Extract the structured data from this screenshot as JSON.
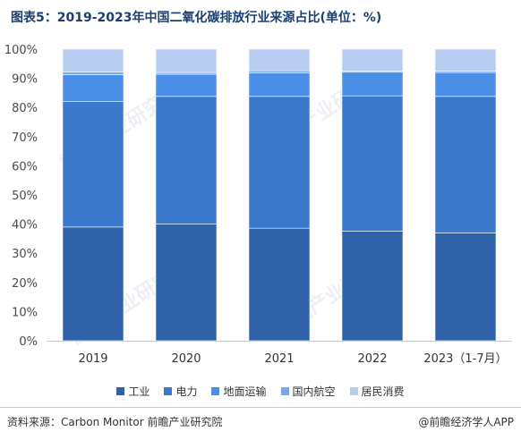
{
  "title": "图表5：2019-2023年中国二氧化碳排放行业来源占比(单位：%)",
  "source": "资料来源：Carbon Monitor 前瞻产业研究院",
  "brand": "@前瞻经济学人APP",
  "watermark": "前瞻产业研究院",
  "colors": [
    "#2e62a9",
    "#3a78cc",
    "#4a8ee6",
    "#7aa8ec",
    "#b9cdf2"
  ],
  "chart_data": {
    "type": "bar",
    "stacked": true,
    "categories": [
      "2019",
      "2020",
      "2021",
      "2022",
      "2023（1-7月）"
    ],
    "series": [
      {
        "name": "工业",
        "values": [
          39,
          40,
          38.6,
          37.6,
          37
        ]
      },
      {
        "name": "电力",
        "values": [
          43,
          43.8,
          45.2,
          46.4,
          46.8
        ]
      },
      {
        "name": "地面运输",
        "values": [
          9.3,
          7.6,
          8.1,
          8.1,
          8.2
        ]
      },
      {
        "name": "国内航空",
        "values": [
          0.9,
          0.6,
          0.7,
          0.4,
          0.5
        ]
      },
      {
        "name": "居民消费",
        "values": [
          7.8,
          8,
          7.4,
          7.5,
          7.5
        ]
      }
    ],
    "yticks": [
      "0%",
      "10%",
      "20%",
      "30%",
      "40%",
      "50%",
      "60%",
      "70%",
      "80%",
      "90%",
      "100%"
    ],
    "ylim": [
      0,
      100
    ],
    "legend_position": "bottom"
  }
}
